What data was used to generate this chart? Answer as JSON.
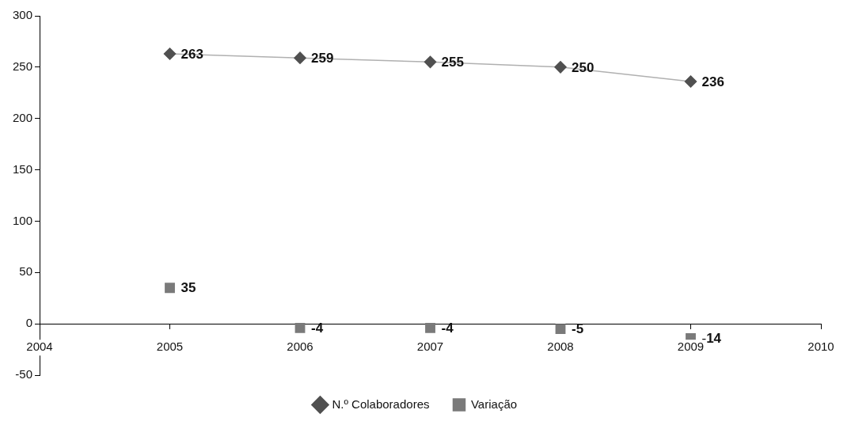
{
  "chart_data": {
    "type": "line",
    "x": [
      2005,
      2006,
      2007,
      2008,
      2009
    ],
    "series": [
      {
        "name": "N.º Colaboradores",
        "type": "line",
        "marker": "diamond",
        "color": "#505050",
        "values": [
          263,
          259,
          255,
          250,
          236
        ]
      },
      {
        "name": "Variação",
        "type": "scatter",
        "marker": "square",
        "color": "#7a7a7a",
        "values": [
          35,
          -4,
          -4,
          -5,
          -14
        ]
      }
    ],
    "xlim": [
      2004,
      2010
    ],
    "xticks": [
      2004,
      2005,
      2006,
      2007,
      2008,
      2009,
      2010
    ],
    "ylim": [
      -50,
      300
    ],
    "yticks": [
      -50,
      0,
      50,
      100,
      150,
      200,
      250,
      300
    ],
    "grid": false,
    "legend": "bottom",
    "data_labels": true
  }
}
